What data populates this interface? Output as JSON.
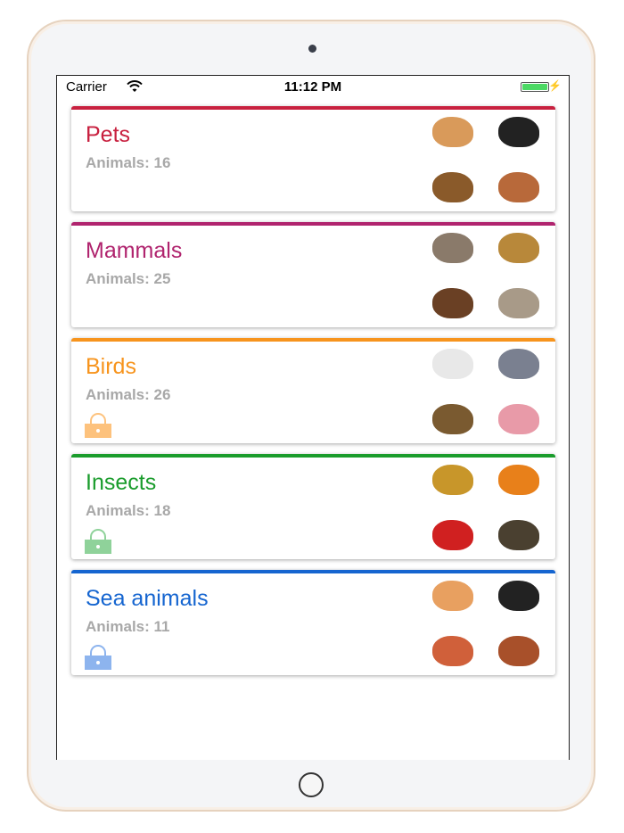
{
  "status_bar": {
    "carrier": "Carrier",
    "time": "11:12 PM",
    "battery_level": 1.0
  },
  "categories": [
    {
      "title": "Pets",
      "count": "Animals: 16",
      "color": "#c8203f",
      "locked": false,
      "animals": [
        {
          "icon": "cat-icon",
          "color": "#d99a5a"
        },
        {
          "icon": "dog-icon",
          "color": "#222222"
        },
        {
          "icon": "chicken-icon",
          "color": "#8a5a2a"
        },
        {
          "icon": "goat-icon",
          "color": "#b8693a"
        }
      ]
    },
    {
      "title": "Mammals",
      "count": "Animals: 25",
      "color": "#b0246e",
      "locked": false,
      "animals": [
        {
          "icon": "hedgehog-icon",
          "color": "#8a7a6a"
        },
        {
          "icon": "lion-icon",
          "color": "#b8883a"
        },
        {
          "icon": "bear-icon",
          "color": "#6a4024"
        },
        {
          "icon": "rabbit-icon",
          "color": "#a89a88"
        }
      ]
    },
    {
      "title": "Birds",
      "count": "Animals: 26",
      "color": "#f7941d",
      "locked": true,
      "lock_color": "#fdc27d",
      "animals": [
        {
          "icon": "swan-icon",
          "color": "#e8e8e8"
        },
        {
          "icon": "pigeon-icon",
          "color": "#7a8090"
        },
        {
          "icon": "owl-icon",
          "color": "#7a5a30"
        },
        {
          "icon": "flamingo-icon",
          "color": "#e89aa8"
        }
      ]
    },
    {
      "title": "Insects",
      "count": "Animals: 18",
      "color": "#1a9c2c",
      "locked": true,
      "lock_color": "#8fd29a",
      "animals": [
        {
          "icon": "bee-icon",
          "color": "#c8962a"
        },
        {
          "icon": "butterfly-icon",
          "color": "#e8801a"
        },
        {
          "icon": "ladybug-icon",
          "color": "#d02020"
        },
        {
          "icon": "spider-icon",
          "color": "#4a4030"
        }
      ]
    },
    {
      "title": "Sea animals",
      "count": "Animals: 11",
      "color": "#1565d0",
      "locked": true,
      "lock_color": "#8db4ee",
      "animals": [
        {
          "icon": "starfish-icon",
          "color": "#e8a060"
        },
        {
          "icon": "penguin-icon",
          "color": "#222222"
        },
        {
          "icon": "octopus-icon",
          "color": "#d0603a"
        },
        {
          "icon": "crab-icon",
          "color": "#a8502a"
        }
      ]
    }
  ]
}
